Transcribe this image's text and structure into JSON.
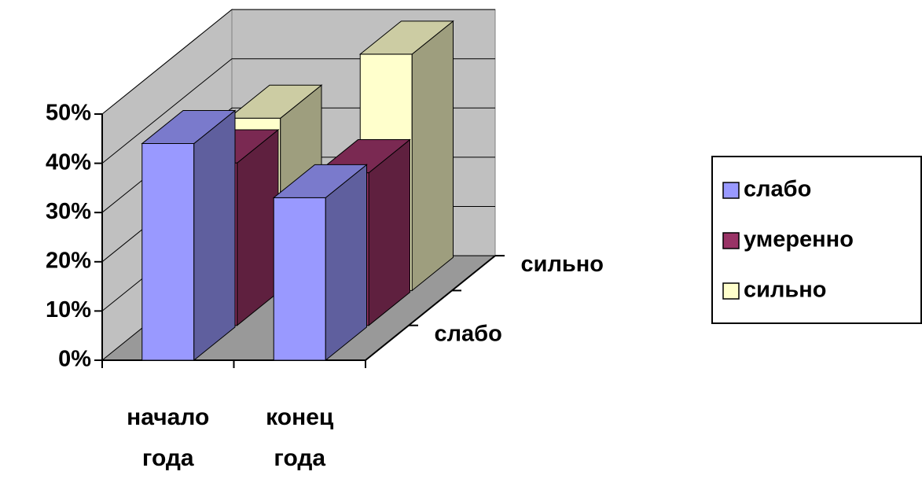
{
  "chart_data": {
    "type": "bar3d",
    "categories": [
      "начало года",
      "конец года"
    ],
    "depth_categories": [
      "слабо",
      null,
      "сильно"
    ],
    "series": [
      {
        "name": "слабо",
        "color": "#9999ff",
        "values": [
          44,
          33
        ]
      },
      {
        "name": "умеренно",
        "color": "#993366",
        "values": [
          33,
          31
        ]
      },
      {
        "name": "сильно",
        "color": "#ffffcc",
        "values": [
          35,
          48
        ]
      }
    ],
    "ylim": [
      0,
      50
    ],
    "yticks": [
      {
        "value": 0,
        "label": "0%"
      },
      {
        "value": 10,
        "label": "10%"
      },
      {
        "value": 20,
        "label": "20%"
      },
      {
        "value": 30,
        "label": "30%"
      },
      {
        "value": 40,
        "label": "40%"
      },
      {
        "value": 50,
        "label": "50%"
      }
    ],
    "grid": true,
    "legend": "right"
  }
}
